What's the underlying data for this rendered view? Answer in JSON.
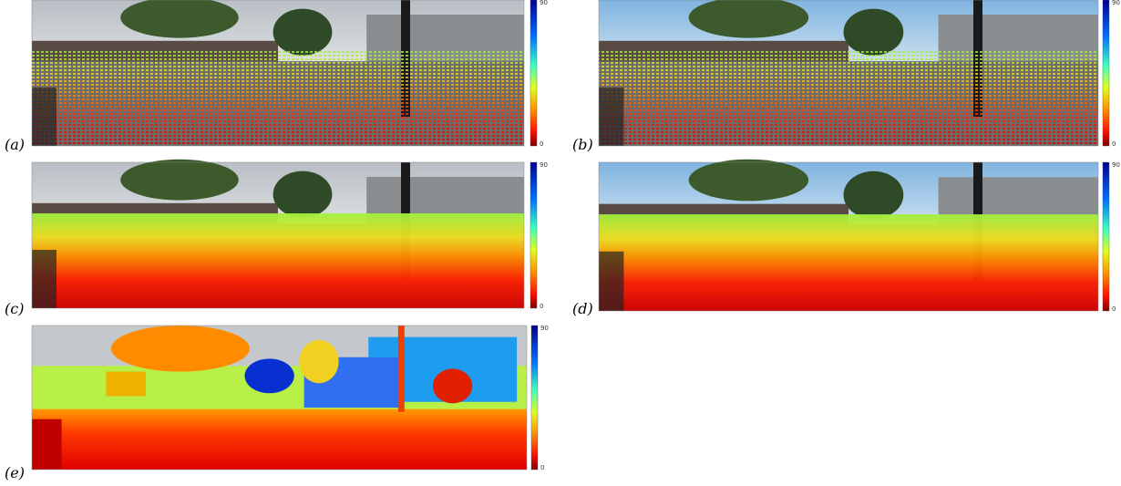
{
  "panels": [
    {
      "label": "(a)",
      "colorbar_ticks": [
        90,
        0
      ]
    },
    {
      "label": "(b)",
      "colorbar_ticks": [
        90,
        0
      ]
    },
    {
      "label": "(c)",
      "colorbar_ticks": [
        90,
        0
      ]
    },
    {
      "label": "(d)",
      "colorbar_ticks": [
        90,
        0
      ]
    },
    {
      "label": "(e)",
      "colorbar_ticks": [
        90,
        0
      ]
    }
  ]
}
